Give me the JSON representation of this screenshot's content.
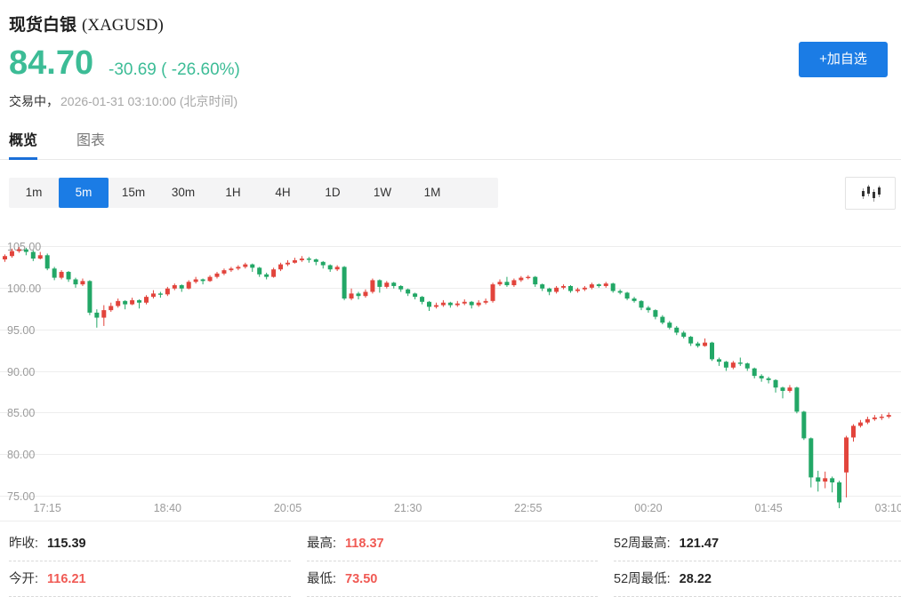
{
  "theme": {
    "accent_blue": "#1b7ce5",
    "tab_underline_blue": "#1a6fd8",
    "price_green": "#3cbc96",
    "stat_red": "#f05a54",
    "candle_up_red": "#e2443c",
    "candle_down_green": "#22a766",
    "axis_gray": "#999999"
  },
  "header": {
    "title_zh": "现货白银",
    "title_symbol": "(XAGUSD)",
    "price": "84.70",
    "change": "-30.69",
    "change_pct": "( -26.60%)",
    "status": "交易中，",
    "datetime": "2026-01-31 03:10:00 (北京时间)",
    "add_button": "+加自选"
  },
  "tabs": [
    {
      "key": "overview",
      "label": "概览",
      "active": true
    },
    {
      "key": "chart",
      "label": "图表",
      "active": false
    }
  ],
  "intervals": {
    "options": [
      "1m",
      "5m",
      "15m",
      "30m",
      "1H",
      "4H",
      "1D",
      "1W",
      "1M"
    ],
    "active": "5m"
  },
  "chart_data": {
    "type": "candlestick",
    "symbol": "XAGUSD",
    "interval": "5m",
    "y_range": [
      75,
      105
    ],
    "y_ticks": [
      "105.00",
      "100.00",
      "95.00",
      "90.00",
      "85.00",
      "80.00",
      "75.00"
    ],
    "x_ticks": [
      {
        "i": 6,
        "label": "17:15"
      },
      {
        "i": 23,
        "label": "18:40"
      },
      {
        "i": 40,
        "label": "20:05"
      },
      {
        "i": 57,
        "label": "21:30"
      },
      {
        "i": 74,
        "label": "22:55"
      },
      {
        "i": 91,
        "label": "00:20"
      },
      {
        "i": 108,
        "label": "01:45"
      },
      {
        "i": 125,
        "label": "03:10"
      }
    ],
    "colors": {
      "up": "#e2443c",
      "down": "#22a766",
      "grid": "#ededed",
      "axis_text": "#9b9b9b"
    },
    "grid": true,
    "candles": [
      [
        103.4,
        104.0,
        103.1,
        103.8
      ],
      [
        103.8,
        104.7,
        103.6,
        104.4
      ],
      [
        104.4,
        104.9,
        104.2,
        104.6
      ],
      [
        104.6,
        104.8,
        103.9,
        104.3
      ],
      [
        104.3,
        104.5,
        103.2,
        103.5
      ],
      [
        103.5,
        104.3,
        103.4,
        103.9
      ],
      [
        103.9,
        104.1,
        102.1,
        102.3
      ],
      [
        102.3,
        102.5,
        100.9,
        101.2
      ],
      [
        101.2,
        102.1,
        101.0,
        101.9
      ],
      [
        101.9,
        102.0,
        100.7,
        101.0
      ],
      [
        101.0,
        101.2,
        100.0,
        100.4
      ],
      [
        100.4,
        101.1,
        100.2,
        100.8
      ],
      [
        100.8,
        100.9,
        96.7,
        97.0
      ],
      [
        97.0,
        97.4,
        95.2,
        96.4
      ],
      [
        96.4,
        97.9,
        95.4,
        97.3
      ],
      [
        97.3,
        98.2,
        97.1,
        97.8
      ],
      [
        97.8,
        98.7,
        97.6,
        98.4
      ],
      [
        98.4,
        98.5,
        97.4,
        98.0
      ],
      [
        98.0,
        98.8,
        97.9,
        98.5
      ],
      [
        98.5,
        98.6,
        97.5,
        98.2
      ],
      [
        98.2,
        99.1,
        98.0,
        98.9
      ],
      [
        98.9,
        99.7,
        98.7,
        99.3
      ],
      [
        99.3,
        99.5,
        98.8,
        99.2
      ],
      [
        99.2,
        100.1,
        99.0,
        99.9
      ],
      [
        99.9,
        100.5,
        99.7,
        100.3
      ],
      [
        100.3,
        100.4,
        99.5,
        99.9
      ],
      [
        99.9,
        100.9,
        99.8,
        100.7
      ],
      [
        100.7,
        101.3,
        100.5,
        101.0
      ],
      [
        101.0,
        101.1,
        100.4,
        100.8
      ],
      [
        100.8,
        101.5,
        100.7,
        101.3
      ],
      [
        101.3,
        101.9,
        101.1,
        101.7
      ],
      [
        101.7,
        102.3,
        101.5,
        102.1
      ],
      [
        102.1,
        102.5,
        101.9,
        102.3
      ],
      [
        102.3,
        102.7,
        102.1,
        102.5
      ],
      [
        102.5,
        103.0,
        102.3,
        102.8
      ],
      [
        102.8,
        102.9,
        101.9,
        102.4
      ],
      [
        102.4,
        102.5,
        101.3,
        101.6
      ],
      [
        101.6,
        101.8,
        101.0,
        101.3
      ],
      [
        101.3,
        102.4,
        101.2,
        102.2
      ],
      [
        102.2,
        103.0,
        102.0,
        102.8
      ],
      [
        102.8,
        103.3,
        102.6,
        103.0
      ],
      [
        103.0,
        103.6,
        102.9,
        103.3
      ],
      [
        103.3,
        103.8,
        103.1,
        103.5
      ],
      [
        103.5,
        103.7,
        103.0,
        103.4
      ],
      [
        103.4,
        103.5,
        102.7,
        103.1
      ],
      [
        103.1,
        103.2,
        102.3,
        102.7
      ],
      [
        102.7,
        102.8,
        101.9,
        102.2
      ],
      [
        102.2,
        102.7,
        102.0,
        102.5
      ],
      [
        102.5,
        102.6,
        98.5,
        98.7
      ],
      [
        98.7,
        99.9,
        98.5,
        99.3
      ],
      [
        99.3,
        99.5,
        98.6,
        99.0
      ],
      [
        99.0,
        99.8,
        98.8,
        99.5
      ],
      [
        99.5,
        101.1,
        99.3,
        100.9
      ],
      [
        100.9,
        101.0,
        99.4,
        100.1
      ],
      [
        100.1,
        100.8,
        99.9,
        100.6
      ],
      [
        100.6,
        100.7,
        99.9,
        100.2
      ],
      [
        100.2,
        100.3,
        99.5,
        99.8
      ],
      [
        99.8,
        99.9,
        99.0,
        99.3
      ],
      [
        99.3,
        99.4,
        98.6,
        98.9
      ],
      [
        98.9,
        99.0,
        98.0,
        98.3
      ],
      [
        98.3,
        98.4,
        97.2,
        97.7
      ],
      [
        97.7,
        98.2,
        97.5,
        97.9
      ],
      [
        97.9,
        98.5,
        97.7,
        98.2
      ],
      [
        98.2,
        98.3,
        97.6,
        97.9
      ],
      [
        97.9,
        98.4,
        97.7,
        98.1
      ],
      [
        98.1,
        98.6,
        97.9,
        98.3
      ],
      [
        98.3,
        98.4,
        97.5,
        97.9
      ],
      [
        97.9,
        98.5,
        97.7,
        98.2
      ],
      [
        98.2,
        98.7,
        98.0,
        98.4
      ],
      [
        98.4,
        100.6,
        98.2,
        100.4
      ],
      [
        100.4,
        101.0,
        100.2,
        100.7
      ],
      [
        100.7,
        101.3,
        100.1,
        100.3
      ],
      [
        100.3,
        101.1,
        100.1,
        100.9
      ],
      [
        100.9,
        101.4,
        100.7,
        101.2
      ],
      [
        101.2,
        101.5,
        101.0,
        101.3
      ],
      [
        101.3,
        101.4,
        100.1,
        100.4
      ],
      [
        100.4,
        100.5,
        99.6,
        99.9
      ],
      [
        99.9,
        100.0,
        99.1,
        99.5
      ],
      [
        99.5,
        100.2,
        99.3,
        100.0
      ],
      [
        100.0,
        100.4,
        99.8,
        100.2
      ],
      [
        100.2,
        100.3,
        99.4,
        99.6
      ],
      [
        99.6,
        100.0,
        99.4,
        99.8
      ],
      [
        99.8,
        100.2,
        99.6,
        100.0
      ],
      [
        100.0,
        100.6,
        99.8,
        100.4
      ],
      [
        100.4,
        100.5,
        100.0,
        100.2
      ],
      [
        100.2,
        100.7,
        100.0,
        100.5
      ],
      [
        100.5,
        100.6,
        99.4,
        99.6
      ],
      [
        99.6,
        99.8,
        99.2,
        99.4
      ],
      [
        99.4,
        99.5,
        98.5,
        98.7
      ],
      [
        98.7,
        98.9,
        98.2,
        98.4
      ],
      [
        98.4,
        98.5,
        97.3,
        97.6
      ],
      [
        97.6,
        97.8,
        97.0,
        97.3
      ],
      [
        97.3,
        97.4,
        96.2,
        96.5
      ],
      [
        96.5,
        96.7,
        95.6,
        95.8
      ],
      [
        95.8,
        96.0,
        95.0,
        95.2
      ],
      [
        95.2,
        95.4,
        94.3,
        94.6
      ],
      [
        94.6,
        94.8,
        93.9,
        94.1
      ],
      [
        94.1,
        94.2,
        93.0,
        93.3
      ],
      [
        93.3,
        93.5,
        92.8,
        93.0
      ],
      [
        93.0,
        93.9,
        92.9,
        93.4
      ],
      [
        93.4,
        93.5,
        91.2,
        91.4
      ],
      [
        91.4,
        91.6,
        90.6,
        91.1
      ],
      [
        91.1,
        91.2,
        90.0,
        90.4
      ],
      [
        90.4,
        91.2,
        90.2,
        91.0
      ],
      [
        91.0,
        91.6,
        90.6,
        90.9
      ],
      [
        90.9,
        91.0,
        90.0,
        90.3
      ],
      [
        90.3,
        90.4,
        89.1,
        89.4
      ],
      [
        89.4,
        89.6,
        88.7,
        89.1
      ],
      [
        89.1,
        89.3,
        88.5,
        88.9
      ],
      [
        88.9,
        89.0,
        87.4,
        88.0
      ],
      [
        88.0,
        88.1,
        86.7,
        87.6
      ],
      [
        87.6,
        88.3,
        87.4,
        88.0
      ],
      [
        88.0,
        88.1,
        84.9,
        85.1
      ],
      [
        85.1,
        85.2,
        81.7,
        81.9
      ],
      [
        81.9,
        82.0,
        76.0,
        77.2
      ],
      [
        77.2,
        78.0,
        75.5,
        76.7
      ],
      [
        76.7,
        77.9,
        75.9,
        77.1
      ],
      [
        77.1,
        77.3,
        75.4,
        76.6
      ],
      [
        76.6,
        76.8,
        73.5,
        74.2
      ],
      [
        77.8,
        82.2,
        74.8,
        82.0
      ],
      [
        82.0,
        83.6,
        81.5,
        83.4
      ],
      [
        83.4,
        84.1,
        83.2,
        83.8
      ],
      [
        83.8,
        84.5,
        83.6,
        84.2
      ],
      [
        84.2,
        84.7,
        84.0,
        84.4
      ],
      [
        84.4,
        84.8,
        84.1,
        84.5
      ],
      [
        84.5,
        85.0,
        84.3,
        84.7
      ]
    ]
  },
  "stats": {
    "columns": [
      {
        "rows": [
          {
            "key": "prev-close",
            "label": "昨收:",
            "value": "115.39",
            "tone": "flat"
          },
          {
            "key": "open",
            "label": "今开:",
            "value": "116.21",
            "tone": "up"
          }
        ]
      },
      {
        "rows": [
          {
            "key": "high",
            "label": "最高:",
            "value": "118.37",
            "tone": "up"
          },
          {
            "key": "low",
            "label": "最低:",
            "value": "73.50",
            "tone": "up"
          }
        ]
      },
      {
        "rows": [
          {
            "key": "52w-high",
            "label": "52周最高:",
            "value": "121.47",
            "tone": "flat"
          },
          {
            "key": "52w-low",
            "label": "52周最低:",
            "value": "28.22",
            "tone": "flat"
          }
        ]
      }
    ]
  }
}
